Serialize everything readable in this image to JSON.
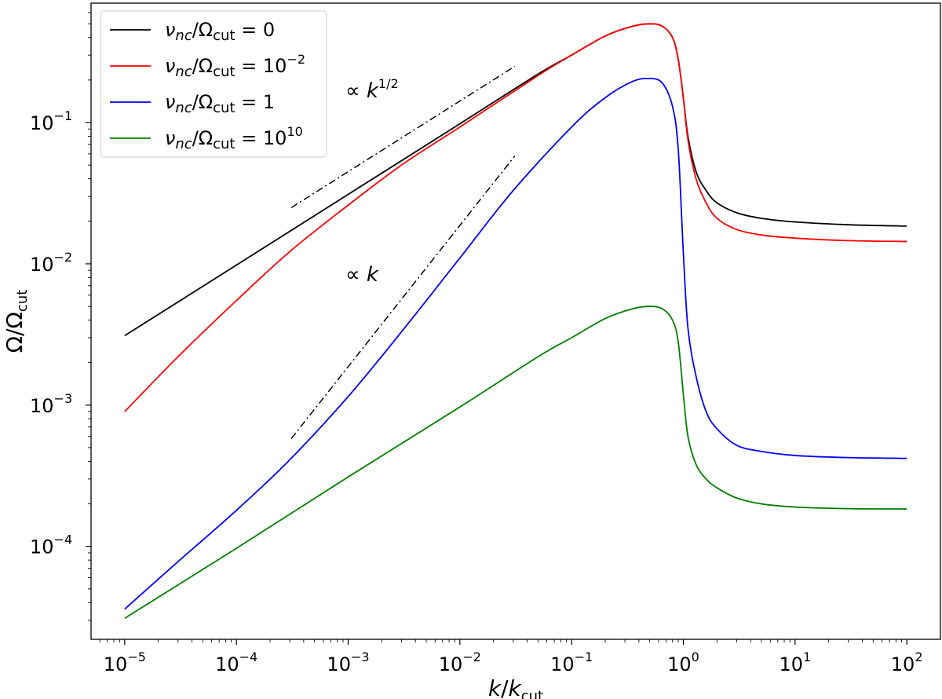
{
  "chart_data": {
    "type": "line",
    "x_scale": "log",
    "y_scale": "log",
    "xlim": [
      5e-06,
      200
    ],
    "ylim": [
      2.2e-05,
      0.7
    ],
    "grid": false,
    "legend_position": "top-left",
    "xlabel": {
      "main": "k",
      "sep": "/",
      "main2": "k",
      "sub": "cut"
    },
    "ylabel": {
      "main": "Ω",
      "sep": "/",
      "main2": "Ω",
      "sub": "cut"
    },
    "x_ticks": [
      {
        "value": 1e-05,
        "base": "10",
        "exp": "−5"
      },
      {
        "value": 0.0001,
        "base": "10",
        "exp": "−4"
      },
      {
        "value": 0.001,
        "base": "10",
        "exp": "−3"
      },
      {
        "value": 0.01,
        "base": "10",
        "exp": "−2"
      },
      {
        "value": 0.1,
        "base": "10",
        "exp": "−1"
      },
      {
        "value": 1,
        "base": "10",
        "exp": "0"
      },
      {
        "value": 10,
        "base": "10",
        "exp": "1"
      },
      {
        "value": 100,
        "base": "10",
        "exp": "2"
      }
    ],
    "y_ticks": [
      {
        "value": 0.0001,
        "base": "10",
        "exp": "−4"
      },
      {
        "value": 0.001,
        "base": "10",
        "exp": "−3"
      },
      {
        "value": 0.01,
        "base": "10",
        "exp": "−2"
      },
      {
        "value": 0.1,
        "base": "10",
        "exp": "−1"
      }
    ],
    "series": [
      {
        "color": "#000000",
        "legend": {
          "nu": "ν",
          "nusub": "nc",
          "mid": "/Ω",
          "sub": "cut",
          "eq": " = ",
          "val": "0",
          "exp": ""
        },
        "points": [
          [
            1e-05,
            0.0031
          ],
          [
            0.0001,
            0.0098
          ],
          [
            0.001,
            0.031
          ],
          [
            0.01,
            0.098
          ],
          [
            0.05,
            0.22
          ],
          [
            0.1,
            0.3
          ],
          [
            0.2,
            0.41
          ],
          [
            0.35,
            0.48
          ],
          [
            0.5,
            0.5
          ],
          [
            0.65,
            0.48
          ],
          [
            0.8,
            0.4
          ],
          [
            0.9,
            0.28
          ],
          [
            1.0,
            0.15
          ],
          [
            1.1,
            0.08
          ],
          [
            1.3,
            0.045
          ],
          [
            1.6,
            0.033
          ],
          [
            2,
            0.027
          ],
          [
            3,
            0.023
          ],
          [
            5,
            0.021
          ],
          [
            10,
            0.0198
          ],
          [
            30,
            0.0189
          ],
          [
            100,
            0.0185
          ]
        ]
      },
      {
        "color": "#ff0000",
        "legend": {
          "nu": "ν",
          "nusub": "nc",
          "mid": "/Ω",
          "sub": "cut",
          "eq": " = ",
          "val": "10",
          "exp": "−2"
        },
        "points": [
          [
            1e-05,
            0.0009
          ],
          [
            3e-05,
            0.0022
          ],
          [
            0.0001,
            0.0055
          ],
          [
            0.0003,
            0.0122
          ],
          [
            0.001,
            0.026
          ],
          [
            0.003,
            0.05
          ],
          [
            0.01,
            0.093
          ],
          [
            0.05,
            0.215
          ],
          [
            0.1,
            0.3
          ],
          [
            0.2,
            0.41
          ],
          [
            0.35,
            0.48
          ],
          [
            0.5,
            0.5
          ],
          [
            0.65,
            0.48
          ],
          [
            0.8,
            0.4
          ],
          [
            0.9,
            0.28
          ],
          [
            1.0,
            0.15
          ],
          [
            1.1,
            0.075
          ],
          [
            1.3,
            0.04
          ],
          [
            1.6,
            0.027
          ],
          [
            2,
            0.021
          ],
          [
            3,
            0.0175
          ],
          [
            5,
            0.016
          ],
          [
            10,
            0.0152
          ],
          [
            30,
            0.0146
          ],
          [
            100,
            0.0144
          ]
        ]
      },
      {
        "color": "#0000ff",
        "legend": {
          "nu": "ν",
          "nusub": "nc",
          "mid": "/Ω",
          "sub": "cut",
          "eq": " = ",
          "val": "1",
          "exp": ""
        },
        "points": [
          [
            1e-05,
            3.6e-05
          ],
          [
            3e-05,
            7.8e-05
          ],
          [
            0.0001,
            0.00018
          ],
          [
            0.0003,
            0.00041
          ],
          [
            0.001,
            0.00115
          ],
          [
            0.003,
            0.0033
          ],
          [
            0.01,
            0.011
          ],
          [
            0.03,
            0.033
          ],
          [
            0.1,
            0.093
          ],
          [
            0.2,
            0.15
          ],
          [
            0.35,
            0.195
          ],
          [
            0.5,
            0.205
          ],
          [
            0.65,
            0.19
          ],
          [
            0.8,
            0.13
          ],
          [
            0.9,
            0.065
          ],
          [
            1.0,
            0.012
          ],
          [
            1.1,
            0.0035
          ],
          [
            1.3,
            0.0016
          ],
          [
            1.6,
            0.0009
          ],
          [
            2,
            0.00068
          ],
          [
            3,
            0.00052
          ],
          [
            5,
            0.00047
          ],
          [
            10,
            0.00044
          ],
          [
            30,
            0.000425
          ],
          [
            100,
            0.00042
          ]
        ]
      },
      {
        "color": "#008000",
        "legend": {
          "nu": "ν",
          "nusub": "nc",
          "mid": "/Ω",
          "sub": "cut",
          "eq": " = ",
          "val": "10",
          "exp": "10"
        },
        "points": [
          [
            1e-05,
            3.1e-05
          ],
          [
            0.0001,
            9.7e-05
          ],
          [
            0.001,
            0.00031
          ],
          [
            0.01,
            0.00097
          ],
          [
            0.05,
            0.0022
          ],
          [
            0.1,
            0.003
          ],
          [
            0.2,
            0.0041
          ],
          [
            0.35,
            0.0048
          ],
          [
            0.5,
            0.005
          ],
          [
            0.65,
            0.0048
          ],
          [
            0.8,
            0.004
          ],
          [
            0.9,
            0.0028
          ],
          [
            1.0,
            0.0012
          ],
          [
            1.1,
            0.0006
          ],
          [
            1.3,
            0.00038
          ],
          [
            1.6,
            0.0003
          ],
          [
            2,
            0.00026
          ],
          [
            3,
            0.00022
          ],
          [
            5,
            0.0002
          ],
          [
            10,
            0.00019
          ],
          [
            30,
            0.000185
          ],
          [
            100,
            0.000184
          ]
        ]
      }
    ],
    "reference_lines": [
      {
        "points": [
          [
            0.00031,
            0.025
          ],
          [
            0.031,
            0.25
          ]
        ],
        "label": {
          "pre": "∝ ",
          "var": "k",
          "exp": "1/2"
        }
      },
      {
        "points": [
          [
            0.00031,
            0.00058
          ],
          [
            0.031,
            0.058
          ]
        ],
        "label": {
          "pre": "∝ ",
          "var": "k",
          "exp": ""
        }
      }
    ]
  }
}
